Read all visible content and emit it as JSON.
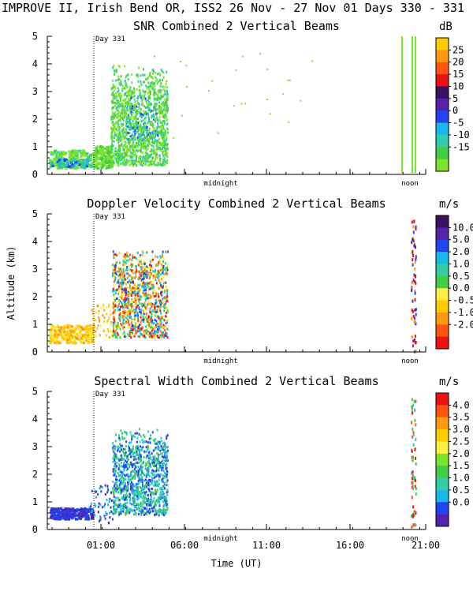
{
  "header": {
    "title": "IMPROVE II,  Irish Bend OR, ISS2  26 Nov - 27 Nov 01 Days 330 - 331"
  },
  "colors": {
    "green": "#7ce42a",
    "med_green": "#44cc44",
    "teal": "#33ccaa",
    "cyan": "#18b8e8",
    "blue": "#2244ee",
    "purple": "#5522aa",
    "dark_purple": "#3a1060",
    "red": "#ee1111",
    "orange_red": "#ff5511",
    "orange": "#ff9911",
    "gold": "#ffcc00",
    "yellow": "#ffee44"
  },
  "chart_data": [
    {
      "type": "heatmap",
      "title": "SNR Combined 2 Vertical Beams",
      "ylim": [
        0,
        5
      ],
      "y_ticks": [
        "0",
        "1",
        "2",
        "3",
        "4",
        "5"
      ],
      "day_marker": "Day 331",
      "annotations": [
        "midnight",
        "noon"
      ],
      "colorbar": {
        "unit": "dB",
        "labels": [
          "25",
          "20",
          "15",
          "10",
          "5",
          "0",
          "-5",
          "-10",
          "-15"
        ],
        "colors": [
          "#ffcc00",
          "#ff9911",
          "#ff5511",
          "#ee1111",
          "#3a1060",
          "#5522aa",
          "#2244ee",
          "#18b8e8",
          "#33ccaa",
          "#44cc44",
          "#7ce42a"
        ]
      }
    },
    {
      "type": "heatmap",
      "title": "Doppler Velocity Combined 2 Vertical Beams",
      "ylabel": "Altitude (km)",
      "ylim": [
        0,
        5
      ],
      "y_ticks": [
        "0",
        "1",
        "2",
        "3",
        "4",
        "5"
      ],
      "day_marker": "Day 331",
      "annotations": [
        "midnight",
        "noon"
      ],
      "colorbar": {
        "unit": "m/s",
        "labels": [
          "10.0",
          "5.0",
          "2.0",
          "1.0",
          "0.5",
          "0.0",
          "-0.5",
          "-1.0",
          "-2.0"
        ],
        "colors": [
          "#3a1060",
          "#5522aa",
          "#2244ee",
          "#18b8e8",
          "#33ccaa",
          "#44cc44",
          "#ffee44",
          "#ffcc00",
          "#ff9911",
          "#ff5511",
          "#ee1111"
        ]
      }
    },
    {
      "type": "heatmap",
      "title": "Spectral Width Combined 2 Vertical Beams",
      "xlabel": "Time (UT)",
      "x_ticks": [
        "01:00",
        "06:00",
        "11:00",
        "16:00",
        "21:00"
      ],
      "ylim": [
        0,
        5
      ],
      "y_ticks": [
        "0",
        "1",
        "2",
        "3",
        "4",
        "5"
      ],
      "day_marker": "Day 331",
      "annotations": [
        "midnight",
        "noon"
      ],
      "colorbar": {
        "unit": "m/s",
        "labels": [
          "4.0",
          "3.5",
          "3.0",
          "2.5",
          "2.0",
          "1.5",
          "1.0",
          "0.5",
          "0.0"
        ],
        "colors": [
          "#ee1111",
          "#ff5511",
          "#ff9911",
          "#ffcc00",
          "#ffee44",
          "#7ce42a",
          "#44cc44",
          "#33ccaa",
          "#18b8e8",
          "#2244ee",
          "#5522aa"
        ]
      }
    }
  ]
}
